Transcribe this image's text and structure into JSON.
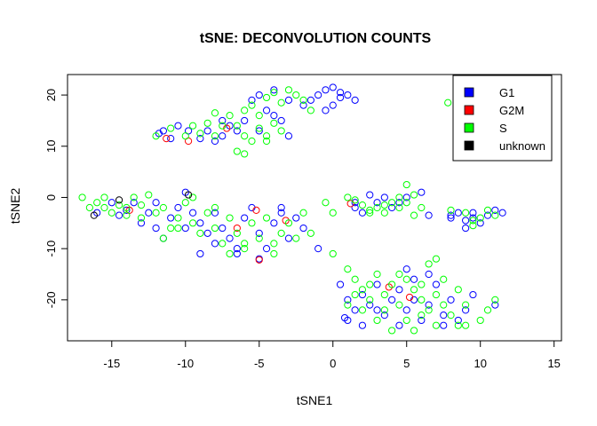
{
  "chart_data": {
    "type": "scatter",
    "title": "tSNE: DECONVOLUTION COUNTS",
    "xlabel": "tSNE1",
    "ylabel": "tSNE2",
    "xlim": [
      -18,
      15.5
    ],
    "ylim": [
      -28,
      24
    ],
    "xticks": [
      -15,
      -10,
      -5,
      0,
      5,
      10,
      15
    ],
    "yticks": [
      -20,
      -10,
      0,
      10,
      20
    ],
    "grid": false,
    "legend_position": "top-right",
    "series": [
      {
        "name": "G1",
        "color": "#0000ff",
        "points": [
          [
            -11.5,
            13
          ],
          [
            -11.8,
            12.5
          ],
          [
            -10.5,
            14
          ],
          [
            -9.8,
            13
          ],
          [
            -9,
            11.5
          ],
          [
            -8.5,
            13
          ],
          [
            -7.5,
            12
          ],
          [
            -7,
            14
          ],
          [
            -6.5,
            13
          ],
          [
            -6,
            15
          ],
          [
            -5,
            13
          ],
          [
            -4.5,
            17
          ],
          [
            -4,
            16
          ],
          [
            -3.5,
            15
          ],
          [
            -5.5,
            19
          ],
          [
            -5,
            20
          ],
          [
            -4,
            21
          ],
          [
            -3,
            19
          ],
          [
            -2,
            18
          ],
          [
            -1.5,
            19
          ],
          [
            -1,
            20
          ],
          [
            -0.5,
            21
          ],
          [
            0,
            21.5
          ],
          [
            0.5,
            20.5
          ],
          [
            1,
            20
          ],
          [
            1.5,
            19
          ],
          [
            -0.5,
            17
          ],
          [
            0,
            18
          ],
          [
            0.5,
            19.5
          ],
          [
            -7.5,
            15
          ],
          [
            -8,
            11
          ],
          [
            -11,
            11.5
          ],
          [
            -3,
            12
          ],
          [
            -13.5,
            -1
          ],
          [
            -14,
            -2.5
          ],
          [
            -13,
            -5
          ],
          [
            -12.5,
            -3
          ],
          [
            -12,
            -6
          ],
          [
            -11.5,
            -8
          ],
          [
            -11,
            -4
          ],
          [
            -10.5,
            -2
          ],
          [
            -10,
            1
          ],
          [
            -9.5,
            -3
          ],
          [
            -9,
            -5
          ],
          [
            -8.5,
            -7
          ],
          [
            -8,
            -9
          ],
          [
            -7.5,
            -6
          ],
          [
            -7,
            -8
          ],
          [
            -6.5,
            -10
          ],
          [
            -6,
            -4
          ],
          [
            -5.5,
            -2
          ],
          [
            -5,
            -7
          ],
          [
            -4.5,
            -10
          ],
          [
            -4,
            -5
          ],
          [
            -3.5,
            -2
          ],
          [
            -3,
            -8
          ],
          [
            -2.5,
            -4
          ],
          [
            -2,
            -6
          ],
          [
            -1,
            -10
          ],
          [
            -15,
            -1
          ],
          [
            -14.5,
            -3.5
          ],
          [
            -16,
            -3
          ],
          [
            -12,
            -1
          ],
          [
            -10,
            -6
          ],
          [
            -9,
            -11
          ],
          [
            -6.5,
            -11
          ],
          [
            -5,
            -12
          ],
          [
            -3.5,
            -3
          ],
          [
            -8,
            -3
          ],
          [
            1.5,
            -1
          ],
          [
            2,
            -3
          ],
          [
            3,
            -1
          ],
          [
            3.5,
            0
          ],
          [
            4,
            -2
          ],
          [
            4.5,
            -1
          ],
          [
            5,
            0
          ],
          [
            6,
            1
          ],
          [
            6.5,
            -3.5
          ],
          [
            2.5,
            0.5
          ],
          [
            1.5,
            -2
          ],
          [
            8,
            -4
          ],
          [
            8.5,
            -3
          ],
          [
            9,
            -4.5
          ],
          [
            9.5,
            -3
          ],
          [
            10,
            -5
          ],
          [
            10.5,
            -3.5
          ],
          [
            11,
            -2.5
          ],
          [
            11.5,
            -3
          ],
          [
            9,
            -6
          ],
          [
            8,
            -3.5
          ],
          [
            9.5,
            -4
          ],
          [
            0.5,
            -17
          ],
          [
            1,
            -20
          ],
          [
            1.5,
            -22
          ],
          [
            2,
            -19
          ],
          [
            2.5,
            -21
          ],
          [
            3,
            -17
          ],
          [
            3.5,
            -23
          ],
          [
            4,
            -20
          ],
          [
            4.5,
            -25
          ],
          [
            5,
            -22
          ],
          [
            5.5,
            -20
          ],
          [
            6,
            -24
          ],
          [
            6.5,
            -21
          ],
          [
            7,
            -17
          ],
          [
            7.5,
            -23
          ],
          [
            8,
            -20
          ],
          [
            8.5,
            -24
          ],
          [
            9,
            -22
          ],
          [
            9.5,
            -19
          ],
          [
            1,
            -24
          ],
          [
            2,
            -25
          ],
          [
            3,
            -22
          ],
          [
            4.5,
            -18
          ],
          [
            5.5,
            -16
          ],
          [
            6.5,
            -15
          ],
          [
            0.8,
            -23.5
          ],
          [
            11,
            -21
          ],
          [
            5,
            -14
          ],
          [
            7.5,
            -25
          ]
        ]
      },
      {
        "name": "G2M",
        "color": "#ff0000",
        "points": [
          [
            -11.3,
            11.5
          ],
          [
            -9.8,
            11
          ],
          [
            -7.2,
            13.5
          ],
          [
            -13.8,
            -2.5
          ],
          [
            -6.5,
            -6
          ],
          [
            -5.2,
            -2.5
          ],
          [
            -5,
            -12.2
          ],
          [
            -3.2,
            -4.5
          ],
          [
            1.2,
            -1.2
          ],
          [
            3.8,
            -17.5
          ],
          [
            5.2,
            -19.5
          ]
        ]
      },
      {
        "name": "S",
        "color": "#00ff00",
        "points": [
          [
            -12,
            12
          ],
          [
            -11,
            13.5
          ],
          [
            -10,
            12
          ],
          [
            -9.5,
            14
          ],
          [
            -9,
            12.5
          ],
          [
            -8.5,
            14.5
          ],
          [
            -8,
            12
          ],
          [
            -7,
            16
          ],
          [
            -6.5,
            14
          ],
          [
            -6,
            12
          ],
          [
            -5.5,
            11
          ],
          [
            -5,
            13.5
          ],
          [
            -4.5,
            12
          ],
          [
            -4,
            14.5
          ],
          [
            -3.5,
            13
          ],
          [
            -6,
            17
          ],
          [
            -6.5,
            9
          ],
          [
            -6,
            8.5
          ],
          [
            -5.5,
            18
          ],
          [
            -4.5,
            19.5
          ],
          [
            -3.5,
            18.5
          ],
          [
            -2.5,
            20
          ],
          [
            -2,
            19
          ],
          [
            -1.5,
            17
          ],
          [
            -3,
            21
          ],
          [
            -4,
            20.5
          ],
          [
            -7.5,
            14
          ],
          [
            -8,
            16.5
          ],
          [
            -5,
            16
          ],
          [
            -4.5,
            11
          ],
          [
            -17,
            0
          ],
          [
            -16.5,
            -2
          ],
          [
            -16,
            -1
          ],
          [
            -15.5,
            0
          ],
          [
            -15,
            -3
          ],
          [
            -14.5,
            -1.5
          ],
          [
            -14,
            -2
          ],
          [
            -13.5,
            0
          ],
          [
            -13,
            -1.5
          ],
          [
            -12.5,
            0.5
          ],
          [
            -12,
            -3
          ],
          [
            -11.5,
            -2
          ],
          [
            -11,
            -6
          ],
          [
            -10.5,
            -4
          ],
          [
            -10,
            -1
          ],
          [
            -9.5,
            -5
          ],
          [
            -9,
            -7
          ],
          [
            -8.5,
            -3
          ],
          [
            -8,
            -6
          ],
          [
            -7.5,
            -9
          ],
          [
            -7,
            -4
          ],
          [
            -6.5,
            -7
          ],
          [
            -6,
            -9
          ],
          [
            -5.5,
            -5
          ],
          [
            -5,
            -8
          ],
          [
            -4.5,
            -4
          ],
          [
            -4,
            -9
          ],
          [
            -3.5,
            -7
          ],
          [
            -3,
            -5
          ],
          [
            -2.5,
            -8
          ],
          [
            -2,
            -3
          ],
          [
            -1.5,
            -7
          ],
          [
            -10.5,
            -6
          ],
          [
            -11.5,
            -8
          ],
          [
            -7,
            -11
          ],
          [
            -6,
            -10
          ],
          [
            -4,
            -11
          ],
          [
            -14,
            -3.5
          ],
          [
            -15.5,
            -2
          ],
          [
            -13,
            -4
          ],
          [
            -9.5,
            0
          ],
          [
            -8,
            -2
          ],
          [
            -0.5,
            -1
          ],
          [
            0,
            -3
          ],
          [
            1,
            0
          ],
          [
            1.5,
            -0.5
          ],
          [
            2,
            -1.5
          ],
          [
            2.5,
            -3
          ],
          [
            3,
            -2
          ],
          [
            3.5,
            -3
          ],
          [
            4,
            -1
          ],
          [
            4.5,
            -2
          ],
          [
            5,
            -1
          ],
          [
            5.5,
            0.5
          ],
          [
            6,
            -2
          ],
          [
            5,
            2.5
          ],
          [
            5.5,
            -3.5
          ],
          [
            2.5,
            -2.5
          ],
          [
            3.5,
            -1.5
          ],
          [
            4.5,
            0
          ],
          [
            8,
            -2.5
          ],
          [
            9,
            -3
          ],
          [
            9.5,
            -5.5
          ],
          [
            10,
            -4
          ],
          [
            10.5,
            -2.5
          ],
          [
            11,
            -3.5
          ],
          [
            9.5,
            -4.5
          ],
          [
            7.8,
            18.5
          ],
          [
            8.5,
            16
          ],
          [
            0,
            -11
          ],
          [
            1,
            -14
          ],
          [
            1.5,
            -16
          ],
          [
            2,
            -18
          ],
          [
            2.5,
            -20
          ],
          [
            3,
            -15
          ],
          [
            3.5,
            -19
          ],
          [
            4,
            -17
          ],
          [
            4.5,
            -21
          ],
          [
            5,
            -16
          ],
          [
            5.5,
            -18
          ],
          [
            6,
            -20
          ],
          [
            6.5,
            -22
          ],
          [
            7,
            -19
          ],
          [
            7.5,
            -21
          ],
          [
            8,
            -23
          ],
          [
            8.5,
            -25
          ],
          [
            9,
            -21
          ],
          [
            3,
            -24
          ],
          [
            4,
            -26
          ],
          [
            5,
            -24
          ],
          [
            6,
            -23
          ],
          [
            7,
            -25
          ],
          [
            2,
            -22
          ],
          [
            1.5,
            -19
          ],
          [
            4.5,
            -15
          ],
          [
            6.5,
            -13
          ],
          [
            7.5,
            -16
          ],
          [
            8.5,
            -18
          ],
          [
            10.5,
            -22
          ],
          [
            11,
            -20
          ],
          [
            10,
            -24
          ],
          [
            9,
            -25
          ],
          [
            5.5,
            -26
          ],
          [
            3.5,
            -22
          ],
          [
            2.5,
            -17
          ],
          [
            1,
            -21
          ],
          [
            6,
            -17
          ],
          [
            7,
            -12
          ]
        ]
      },
      {
        "name": "unknown",
        "color": "#000000",
        "points": [
          [
            -16.2,
            -3.5
          ],
          [
            -14.5,
            -0.5
          ],
          [
            -9.8,
            0.5
          ]
        ]
      }
    ]
  }
}
